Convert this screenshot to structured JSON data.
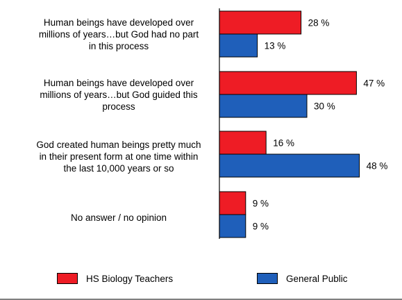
{
  "chart_data": {
    "type": "bar",
    "orientation": "horizontal",
    "categories": [
      "Human beings have developed over millions of years…but God had no part in this process",
      "Human beings have developed over millions of years…but God guided this process",
      "God created human beings pretty much in their present form at one time within the last 10,000 years or so",
      "No answer / no opinion"
    ],
    "category_lines": [
      [
        "Human beings have developed over",
        "millions of years…but God had no part",
        "in this process"
      ],
      [
        "Human beings have developed over",
        "millions of years…but God guided this",
        "process"
      ],
      [
        "God created human beings pretty much",
        "in their present form at one time within",
        "the last 10,000 years or so"
      ],
      [
        "No answer / no opinion"
      ]
    ],
    "series": [
      {
        "name": "HS Biology Teachers",
        "color": "#ee1c25",
        "values": [
          28,
          47,
          16,
          9
        ],
        "labels": [
          "28 %",
          "47 %",
          "16 %",
          "9 %"
        ]
      },
      {
        "name": "General Public",
        "color": "#1f5fba",
        "values": [
          13,
          30,
          48,
          9
        ],
        "labels": [
          "13 %",
          "30 %",
          "48 %",
          "9 %"
        ]
      }
    ],
    "xlim": [
      0,
      50
    ],
    "legend_position": "bottom"
  }
}
